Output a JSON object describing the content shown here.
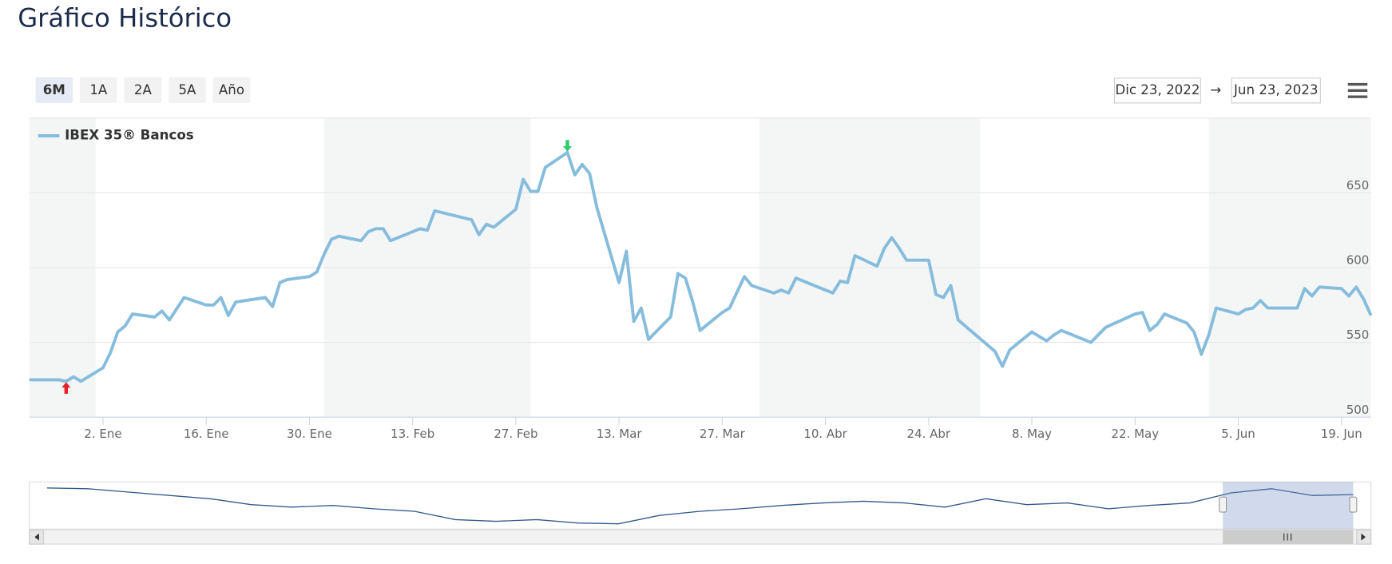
{
  "title": "Gráfico Histórico",
  "range_buttons": [
    "6M",
    "1A",
    "2A",
    "5A",
    "Año"
  ],
  "date_range": {
    "from": "Dic 23, 2022",
    "separator": "→",
    "to": "Jun 23, 2023"
  },
  "chart_data": {
    "type": "line",
    "x": [
      "2022-12-23",
      "2022-12-27",
      "2022-12-28",
      "2022-12-29",
      "2022-12-30",
      "2023-01-02",
      "2023-01-03",
      "2023-01-04",
      "2023-01-05",
      "2023-01-06",
      "2023-01-09",
      "2023-01-10",
      "2023-01-11",
      "2023-01-13",
      "2023-01-16",
      "2023-01-17",
      "2023-01-18",
      "2023-01-19",
      "2023-01-20",
      "2023-01-24",
      "2023-01-25",
      "2023-01-26",
      "2023-01-27",
      "2023-01-30",
      "2023-01-31",
      "2023-02-01",
      "2023-02-02",
      "2023-02-03",
      "2023-02-06",
      "2023-02-07",
      "2023-02-08",
      "2023-02-09",
      "2023-02-10",
      "2023-02-13",
      "2023-02-14",
      "2023-02-15",
      "2023-02-16",
      "2023-02-21",
      "2023-02-22",
      "2023-02-23",
      "2023-02-24",
      "2023-02-27",
      "2023-02-28",
      "2023-03-01",
      "2023-03-02",
      "2023-03-03",
      "2023-03-06",
      "2023-03-07",
      "2023-03-08",
      "2023-03-09",
      "2023-03-10",
      "2023-03-13",
      "2023-03-14",
      "2023-03-15",
      "2023-03-16",
      "2023-03-17",
      "2023-03-20",
      "2023-03-21",
      "2023-03-22",
      "2023-03-23",
      "2023-03-24",
      "2023-03-27",
      "2023-03-28",
      "2023-03-30",
      "2023-03-31",
      "2023-04-03",
      "2023-04-04",
      "2023-04-05",
      "2023-04-06",
      "2023-04-11",
      "2023-04-12",
      "2023-04-13",
      "2023-04-14",
      "2023-04-17",
      "2023-04-18",
      "2023-04-19",
      "2023-04-20",
      "2023-04-21",
      "2023-04-24",
      "2023-04-25",
      "2023-04-26",
      "2023-04-27",
      "2023-04-28",
      "2023-05-03",
      "2023-05-04",
      "2023-05-05",
      "2023-05-08",
      "2023-05-10",
      "2023-05-11",
      "2023-05-12",
      "2023-05-16",
      "2023-05-18",
      "2023-05-22",
      "2023-05-23",
      "2023-05-24",
      "2023-05-25",
      "2023-05-26",
      "2023-05-29",
      "2023-05-30",
      "2023-05-31",
      "2023-06-01",
      "2023-06-02",
      "2023-06-05",
      "2023-06-06",
      "2023-06-07",
      "2023-06-08",
      "2023-06-09",
      "2023-06-13",
      "2023-06-14",
      "2023-06-15",
      "2023-06-16",
      "2023-06-19",
      "2023-06-20",
      "2023-06-21",
      "2023-06-22",
      "2023-06-23"
    ],
    "series": [
      {
        "name": "IBEX 35® Bancos",
        "color": "#86bcdc",
        "values": [
          525,
          525,
          524,
          527,
          524,
          533,
          543,
          557,
          561,
          569,
          567,
          571,
          565,
          580,
          575,
          575,
          580,
          568,
          577,
          580,
          574,
          590,
          592,
          594,
          597,
          609,
          619,
          621,
          618,
          624,
          626,
          626,
          618,
          624,
          626,
          625,
          638,
          632,
          622,
          629,
          627,
          639,
          659,
          651,
          651,
          667,
          677,
          662,
          669,
          663,
          640,
          590,
          611,
          564,
          573,
          552,
          567,
          596,
          593,
          577,
          558,
          570,
          573,
          594,
          588,
          583,
          585,
          583,
          593,
          583,
          591,
          590,
          608,
          601,
          613,
          620,
          613,
          605,
          605,
          582,
          580,
          588,
          565,
          544,
          534,
          545,
          557,
          551,
          555,
          558,
          550,
          560,
          569,
          570,
          558,
          562,
          569,
          563,
          557,
          542,
          555,
          573,
          569,
          572,
          573,
          578,
          573,
          573,
          586,
          581,
          587,
          586,
          581,
          587,
          579,
          568
        ]
      }
    ],
    "xlim": [
      "2022-12-23",
      "2023-06-23"
    ],
    "xticks": [
      {
        "value": "2023-01-02",
        "label": "2. Ene"
      },
      {
        "value": "2023-01-16",
        "label": "16. Ene"
      },
      {
        "value": "2023-01-30",
        "label": "30. Ene"
      },
      {
        "value": "2023-02-13",
        "label": "13. Feb"
      },
      {
        "value": "2023-02-27",
        "label": "27. Feb"
      },
      {
        "value": "2023-03-13",
        "label": "13. Mar"
      },
      {
        "value": "2023-03-27",
        "label": "27. Mar"
      },
      {
        "value": "2023-04-10",
        "label": "10. Abr"
      },
      {
        "value": "2023-04-24",
        "label": "24. Abr"
      },
      {
        "value": "2023-05-08",
        "label": "8. May"
      },
      {
        "value": "2023-05-22",
        "label": "22. May"
      },
      {
        "value": "2023-06-05",
        "label": "5. Jun"
      },
      {
        "value": "2023-06-19",
        "label": "19. Jun"
      }
    ],
    "ylim": [
      500,
      700
    ],
    "yticks": [
      500,
      550,
      600,
      650
    ],
    "grid": true,
    "legend": "top-left",
    "navigator": {
      "color": "#335a8a",
      "ylim": [
        0,
        50
      ],
      "values": [
        45,
        44,
        40,
        36,
        32,
        25,
        22,
        24,
        20,
        17,
        7,
        5,
        7,
        3,
        2,
        12,
        17,
        20,
        24,
        27,
        29,
        27,
        22,
        32,
        25,
        27,
        20,
        24,
        27,
        39,
        44,
        36,
        37
      ]
    }
  }
}
